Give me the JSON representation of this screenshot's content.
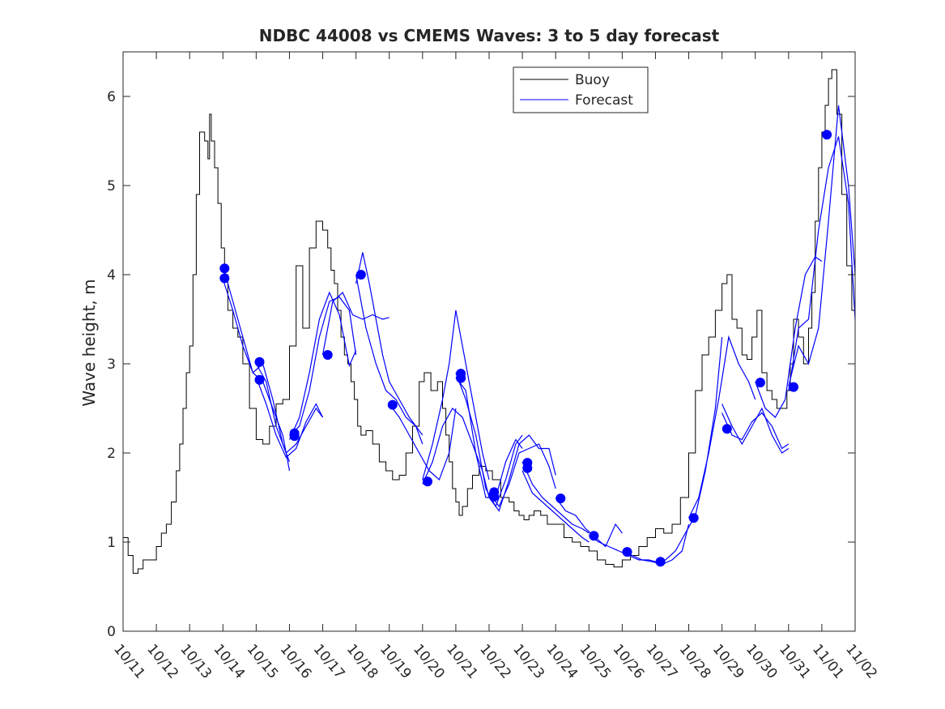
{
  "chart_data": {
    "type": "line",
    "title": "NDBC 44008 vs CMEMS Waves: 3 to 5 day forecast",
    "xlabel": "",
    "ylabel": "Wave height, m",
    "xlim": [
      0,
      22
    ],
    "ylim": [
      0,
      6.5
    ],
    "x_ticks": [
      0,
      1,
      2,
      3,
      4,
      5,
      6,
      7,
      8,
      9,
      10,
      11,
      12,
      13,
      14,
      15,
      16,
      17,
      18,
      19,
      20,
      21,
      22
    ],
    "x_tick_labels": [
      "10/11",
      "10/12",
      "10/13",
      "10/14",
      "10/15",
      "10/16",
      "10/17",
      "10/18",
      "10/19",
      "10/20",
      "10/21",
      "10/22",
      "10/23",
      "10/24",
      "10/25",
      "10/26",
      "10/27",
      "10/28",
      "10/29",
      "10/30",
      "10/31",
      "11/01",
      "11/02"
    ],
    "y_ticks": [
      0,
      1,
      2,
      3,
      4,
      5,
      6
    ],
    "y_tick_labels": [
      "0",
      "1",
      "2",
      "3",
      "4",
      "5",
      "6"
    ],
    "grid": false,
    "legend_position": "top-right",
    "series": [
      {
        "name": "Buoy",
        "color": "#000000",
        "x": [
          0,
          0.15,
          0.3,
          0.45,
          0.6,
          0.75,
          0.9,
          1.0,
          1.15,
          1.3,
          1.45,
          1.6,
          1.7,
          1.8,
          1.9,
          2.0,
          2.1,
          2.2,
          2.3,
          2.45,
          2.55,
          2.6,
          2.65,
          2.75,
          2.85,
          2.95,
          3.05,
          3.15,
          3.3,
          3.45,
          3.6,
          3.8,
          4.0,
          4.2,
          4.4,
          4.6,
          4.8,
          5.0,
          5.2,
          5.4,
          5.6,
          5.8,
          6.0,
          6.15,
          6.25,
          6.35,
          6.45,
          6.55,
          6.65,
          6.75,
          6.85,
          6.95,
          7.05,
          7.15,
          7.3,
          7.5,
          7.7,
          7.9,
          8.1,
          8.3,
          8.5,
          8.7,
          8.9,
          9.05,
          9.25,
          9.45,
          9.6,
          9.7,
          9.8,
          9.9,
          10.0,
          10.1,
          10.2,
          10.35,
          10.5,
          10.7,
          10.9,
          11.1,
          11.35,
          11.6,
          11.75,
          11.9,
          12.05,
          12.2,
          12.35,
          12.55,
          12.75,
          13.0,
          13.25,
          13.5,
          13.75,
          14.0,
          14.25,
          14.5,
          14.75,
          15.0,
          15.25,
          15.5,
          15.75,
          16.0,
          16.25,
          16.5,
          16.75,
          17.0,
          17.2,
          17.4,
          17.6,
          17.8,
          18.0,
          18.15,
          18.3,
          18.45,
          18.6,
          18.75,
          18.9,
          19.05,
          19.2,
          19.35,
          19.5,
          19.65,
          19.8,
          19.95,
          20.05,
          20.15,
          20.3,
          20.45,
          20.6,
          20.7,
          20.8,
          20.9,
          21.0,
          21.1,
          21.2,
          21.3,
          21.45,
          21.6,
          21.75,
          21.9,
          22.0
        ],
        "values": [
          1.05,
          0.85,
          0.65,
          0.7,
          0.8,
          0.8,
          0.8,
          0.95,
          1.1,
          1.2,
          1.45,
          1.8,
          2.1,
          2.5,
          2.9,
          3.2,
          4.0,
          4.9,
          5.6,
          5.5,
          5.3,
          5.8,
          5.5,
          5.2,
          4.8,
          4.3,
          4.0,
          3.6,
          3.4,
          3.3,
          3.0,
          2.5,
          2.15,
          2.1,
          2.3,
          2.55,
          2.6,
          3.2,
          4.1,
          3.4,
          4.3,
          4.6,
          4.5,
          4.3,
          4.05,
          3.9,
          3.6,
          3.3,
          3.1,
          3.0,
          2.8,
          2.6,
          2.3,
          2.2,
          2.25,
          2.1,
          1.9,
          1.8,
          1.7,
          1.75,
          2.0,
          2.3,
          2.8,
          2.9,
          2.7,
          2.8,
          2.5,
          2.2,
          1.9,
          1.6,
          1.45,
          1.3,
          1.4,
          1.6,
          1.75,
          1.85,
          1.8,
          1.7,
          1.5,
          1.45,
          1.35,
          1.3,
          1.25,
          1.3,
          1.35,
          1.3,
          1.2,
          1.2,
          1.05,
          1.0,
          0.95,
          0.9,
          0.8,
          0.75,
          0.72,
          0.8,
          0.85,
          0.95,
          1.05,
          1.15,
          1.1,
          1.2,
          1.5,
          2.0,
          2.7,
          3.1,
          3.3,
          3.6,
          3.9,
          4.0,
          3.5,
          3.4,
          3.1,
          3.05,
          3.3,
          3.6,
          2.9,
          2.7,
          2.6,
          2.5,
          2.5,
          2.7,
          3.0,
          3.5,
          3.3,
          3.0,
          3.4,
          3.8,
          4.6,
          5.2,
          5.6,
          5.9,
          6.2,
          6.3,
          5.8,
          4.9,
          4.1,
          3.6,
          3.3
        ]
      },
      {
        "name": "Forecast",
        "color": "#0000ff",
        "segments": [
          {
            "x": [
              3.0,
              3.3,
              3.6,
              3.9,
              4.2,
              4.5,
              4.8,
              5.0
            ],
            "values": [
              4.1,
              3.7,
              3.3,
              2.9,
              2.8,
              2.5,
              2.2,
              1.8
            ]
          },
          {
            "x": [
              3.0,
              3.3,
              3.6,
              3.9,
              4.2,
              4.5,
              4.8,
              5.0
            ],
            "values": [
              3.95,
              3.6,
              3.2,
              2.9,
              3.0,
              2.6,
              2.1,
              1.9
            ]
          },
          {
            "x": [
              4.0,
              4.3,
              4.6,
              4.9,
              5.2,
              5.5,
              5.8,
              6.0
            ],
            "values": [
              3.0,
              2.8,
              2.3,
              2.0,
              2.1,
              2.3,
              2.5,
              2.4
            ]
          },
          {
            "x": [
              4.0,
              4.3,
              4.6,
              4.9,
              5.2,
              5.5,
              5.8,
              6.0
            ],
            "values": [
              2.85,
              2.55,
              2.2,
              1.95,
              2.05,
              2.35,
              2.55,
              2.4
            ]
          },
          {
            "x": [
              5.0,
              5.3,
              5.6,
              5.9,
              6.2,
              6.5,
              6.8,
              7.0
            ],
            "values": [
              2.2,
              2.3,
              2.7,
              3.3,
              3.7,
              3.75,
              3.6,
              3.1
            ]
          },
          {
            "x": [
              5.0,
              5.3,
              5.6,
              5.9,
              6.2,
              6.5,
              6.8,
              7.0
            ],
            "values": [
              2.15,
              2.4,
              2.9,
              3.5,
              3.8,
              3.55,
              2.98,
              3.15
            ]
          },
          {
            "x": [
              6.0,
              6.3,
              6.6,
              6.9,
              7.2,
              7.5,
              7.8,
              8.0
            ],
            "values": [
              3.1,
              3.7,
              3.8,
              3.55,
              3.5,
              3.55,
              3.5,
              3.52
            ]
          },
          {
            "x": [
              7.0,
              7.3,
              7.6,
              7.9,
              8.2,
              8.5,
              8.8,
              9.0
            ],
            "values": [
              4.0,
              3.4,
              3.0,
              2.7,
              2.6,
              2.4,
              2.3,
              2.1
            ]
          },
          {
            "x": [
              7.0,
              7.2,
              7.4,
              7.6,
              7.8,
              8.0,
              8.3,
              8.6,
              9.0
            ],
            "values": [
              3.9,
              4.25,
              3.9,
              3.5,
              3.1,
              2.8,
              2.6,
              2.4,
              2.2
            ]
          },
          {
            "x": [
              8.0,
              8.3,
              8.6,
              8.9,
              9.2,
              9.5,
              9.8,
              10.0
            ],
            "values": [
              2.55,
              2.4,
              2.2,
              2.0,
              1.8,
              1.7,
              2.0,
              2.5
            ]
          },
          {
            "x": [
              9.0,
              9.3,
              9.6,
              9.8,
              10.0,
              10.2,
              10.4,
              10.6,
              10.8,
              11.0
            ],
            "values": [
              1.7,
              2.1,
              2.6,
              3.0,
              3.6,
              3.2,
              2.8,
              2.4,
              2.0,
              1.7
            ]
          },
          {
            "x": [
              9.0,
              9.3,
              9.6,
              9.9,
              10.2,
              10.5,
              10.8,
              11.0
            ],
            "values": [
              1.65,
              1.9,
              2.3,
              2.5,
              2.4,
              2.1,
              1.8,
              1.5
            ]
          },
          {
            "x": [
              10.0,
              10.3,
              10.6,
              10.9,
              11.2,
              11.5,
              11.8,
              12.0
            ],
            "values": [
              2.9,
              2.6,
              2.2,
              1.6,
              1.4,
              1.7,
              2.1,
              2.2
            ]
          },
          {
            "x": [
              10.0,
              10.3,
              10.6,
              10.9,
              11.2,
              11.5,
              11.8,
              12.0
            ],
            "values": [
              2.85,
              2.7,
              2.0,
              1.5,
              1.5,
              1.9,
              2.15,
              2.05
            ]
          },
          {
            "x": [
              11.0,
              11.3,
              11.6,
              11.9,
              12.2,
              12.5,
              12.8,
              13.0
            ],
            "values": [
              1.55,
              1.4,
              1.65,
              2.0,
              2.05,
              2.1,
              1.85,
              1.6
            ]
          },
          {
            "x": [
              11.0,
              11.3,
              11.6,
              11.9,
              12.2,
              12.5,
              12.8,
              13.0
            ],
            "values": [
              1.5,
              1.35,
              1.7,
              2.1,
              2.2,
              2.05,
              2.05,
              1.75
            ]
          },
          {
            "x": [
              12.0,
              12.3,
              12.6,
              12.9,
              13.2,
              13.5,
              13.8,
              14.0
            ],
            "values": [
              1.9,
              1.65,
              1.5,
              1.4,
              1.3,
              1.2,
              1.15,
              1.1
            ]
          },
          {
            "x": [
              12.0,
              12.3,
              12.6,
              12.9,
              13.2,
              13.5,
              13.8,
              14.0
            ],
            "values": [
              1.8,
              1.55,
              1.45,
              1.35,
              1.25,
              1.15,
              1.05,
              1.0
            ]
          },
          {
            "x": [
              13.0,
              13.3,
              13.6,
              13.9,
              14.2,
              14.5,
              14.8,
              15.0
            ],
            "values": [
              1.5,
              1.35,
              1.3,
              1.15,
              1.05,
              0.95,
              1.2,
              1.1
            ]
          },
          {
            "x": [
              14.0,
              14.3,
              14.6,
              14.9,
              15.2,
              15.5,
              15.8,
              16.0
            ],
            "values": [
              1.07,
              1.0,
              0.95,
              0.9,
              0.85,
              0.8,
              0.8,
              0.78
            ]
          },
          {
            "x": [
              15.0,
              15.3,
              15.6,
              15.9,
              16.2,
              16.5,
              16.8,
              17.0
            ],
            "values": [
              0.9,
              0.85,
              0.8,
              0.78,
              0.75,
              0.8,
              0.9,
              1.2
            ]
          },
          {
            "x": [
              16.0,
              16.3,
              16.6,
              16.9,
              17.2,
              17.5,
              17.8,
              18.0
            ],
            "values": [
              0.78,
              0.8,
              0.9,
              1.1,
              1.3,
              1.8,
              2.5,
              3.3
            ]
          },
          {
            "x": [
              17.0,
              17.3,
              17.6,
              17.9,
              18.2,
              18.5,
              18.8,
              19.0
            ],
            "values": [
              1.27,
              1.5,
              2.0,
              2.6,
              3.3,
              3.0,
              2.8,
              2.6
            ]
          },
          {
            "x": [
              18.0,
              18.3,
              18.6,
              18.9,
              19.2,
              19.5,
              19.8,
              20.0
            ],
            "values": [
              2.55,
              2.3,
              2.1,
              2.3,
              2.5,
              2.2,
              2.0,
              2.05
            ]
          },
          {
            "x": [
              18.0,
              18.3,
              18.6,
              18.9,
              19.2,
              19.5,
              19.8,
              20.0
            ],
            "values": [
              2.45,
              2.2,
              2.15,
              2.35,
              2.45,
              2.3,
              2.05,
              2.1
            ]
          },
          {
            "x": [
              19.0,
              19.3,
              19.6,
              19.9,
              20.2,
              20.5,
              20.8,
              21.0
            ],
            "values": [
              2.8,
              2.5,
              2.4,
              2.6,
              3.4,
              4.0,
              4.2,
              4.15
            ]
          },
          {
            "x": [
              20.0,
              20.3,
              20.6,
              20.9,
              21.2,
              21.5,
              21.8,
              22.0
            ],
            "values": [
              2.75,
              3.2,
              3.0,
              3.4,
              4.6,
              5.9,
              5.0,
              4.0
            ]
          },
          {
            "x": [
              20.0,
              20.3,
              20.6,
              20.9,
              21.2,
              21.5,
              21.8,
              22.0
            ],
            "values": [
              2.7,
              3.4,
              3.5,
              4.5,
              5.2,
              5.55,
              4.8,
              3.5
            ]
          }
        ],
        "markers": {
          "x": [
            3.05,
            3.05,
            4.1,
            4.1,
            5.15,
            5.15,
            6.15,
            7.15,
            8.1,
            9.15,
            10.15,
            10.15,
            11.15,
            11.15,
            12.15,
            12.15,
            13.15,
            14.15,
            15.15,
            16.15,
            17.15,
            18.15,
            19.15,
            20.15,
            21.15
          ],
          "values": [
            4.07,
            3.96,
            3.02,
            2.82,
            2.22,
            2.19,
            3.1,
            4.0,
            2.54,
            1.68,
            2.89,
            2.84,
            1.56,
            1.51,
            1.89,
            1.83,
            1.49,
            1.07,
            0.89,
            0.78,
            1.27,
            2.27,
            2.79,
            2.74,
            5.57
          ]
        }
      }
    ]
  }
}
